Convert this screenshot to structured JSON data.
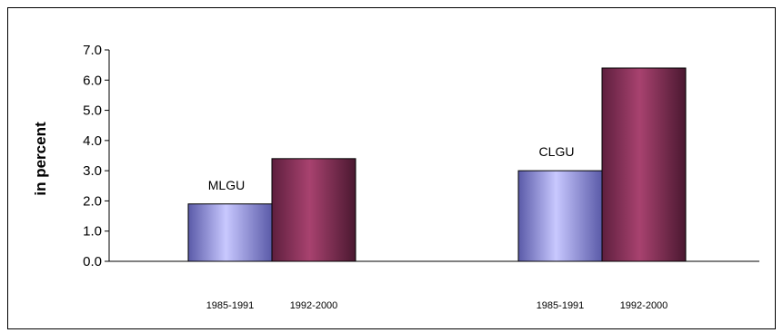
{
  "chart_data": {
    "type": "bar",
    "title": "",
    "xlabel": "",
    "ylabel": "in percent",
    "ylim": [
      0,
      7
    ],
    "yticks": [
      "0.0",
      "1.0",
      "2.0",
      "3.0",
      "4.0",
      "5.0",
      "6.0",
      "7.0"
    ],
    "grid": false,
    "groups": [
      {
        "label": "MLGU",
        "categories": [
          "1985-1991",
          "1992-2000"
        ],
        "values": [
          1.9,
          3.4
        ]
      },
      {
        "label": "CLGU",
        "categories": [
          "1985-1991",
          "1992-2000"
        ],
        "values": [
          3.0,
          6.4
        ]
      }
    ],
    "series_colors": [
      "#9999ff",
      "#993366"
    ]
  }
}
